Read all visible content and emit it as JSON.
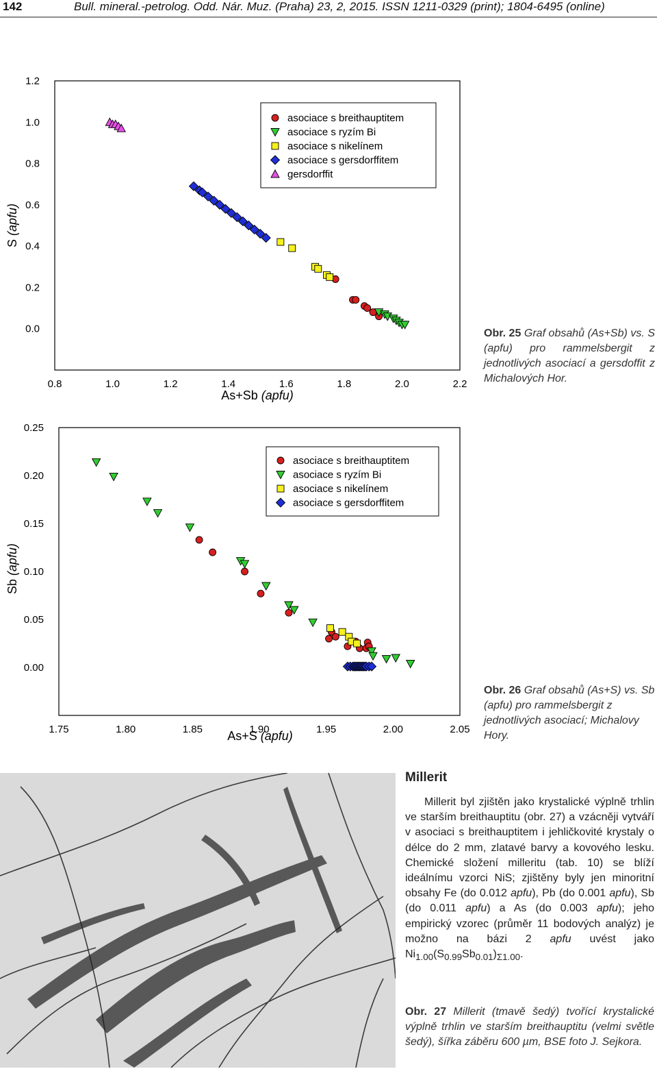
{
  "header": {
    "page_number": "142",
    "running_head": "Bull. mineral.-petrolog. Odd. Nár. Muz. (Praha) 23, 2, 2015. ISSN 1211-0329 (print); 1804-6495 (online)"
  },
  "colors": {
    "breithauptit": "#d81f1f",
    "ryzi_bi": "#33cc33",
    "nikelin": "#f6f11c",
    "gersdorffit_assoc": "#1f2fd8",
    "gersdorffit": "#e44fe4"
  },
  "chart_data": [
    {
      "type": "scatter",
      "xlabel_main": "As+Sb ",
      "xlabel_unit": "(apfu)",
      "ylabel_main": "S ",
      "ylabel_unit": "(apfu)",
      "xlim": [
        0.8,
        2.2
      ],
      "ylim": [
        -0.2,
        1.2
      ],
      "xticks": [
        "0.8",
        "1.0",
        "1.2",
        "1.4",
        "1.6",
        "1.8",
        "2.0",
        "2.2"
      ],
      "yticks": [
        "0.0",
        "0.2",
        "0.4",
        "0.6",
        "0.8",
        "1.0",
        "1.2"
      ],
      "legend_position": "top-right",
      "series": [
        {
          "name": "asociace s breithauptitem",
          "marker": "circle",
          "color": "#d81f1f",
          "x": [
            1.77,
            1.83,
            1.84,
            1.87,
            1.88,
            1.9,
            1.92
          ],
          "y": [
            0.24,
            0.14,
            0.14,
            0.11,
            0.1,
            0.08,
            0.06
          ]
        },
        {
          "name": "asociace s ryzím Bi",
          "marker": "triangle-down",
          "color": "#33cc33",
          "x": [
            1.92,
            1.94,
            1.95,
            1.97,
            1.98,
            1.99,
            2.0,
            2.01
          ],
          "y": [
            0.08,
            0.07,
            0.06,
            0.05,
            0.04,
            0.03,
            0.02,
            0.02
          ]
        },
        {
          "name": "asociace s nikelínem",
          "marker": "square",
          "color": "#f6f11c",
          "x": [
            1.58,
            1.62,
            1.7,
            1.71,
            1.74,
            1.75
          ],
          "y": [
            0.42,
            0.39,
            0.3,
            0.29,
            0.26,
            0.25
          ]
        },
        {
          "name": "asociace s gersdorffitem",
          "marker": "diamond",
          "color": "#1f2fd8",
          "x": [
            1.28,
            1.3,
            1.31,
            1.33,
            1.35,
            1.37,
            1.39,
            1.41,
            1.43,
            1.45,
            1.47,
            1.49,
            1.51,
            1.53
          ],
          "y": [
            0.69,
            0.67,
            0.66,
            0.64,
            0.62,
            0.6,
            0.58,
            0.56,
            0.54,
            0.52,
            0.5,
            0.48,
            0.46,
            0.44
          ]
        },
        {
          "name": "gersdorffit",
          "marker": "triangle-up",
          "color": "#e44fe4",
          "x": [
            0.99,
            1.0,
            1.01,
            1.02,
            1.03
          ],
          "y": [
            1.0,
            0.99,
            0.99,
            0.98,
            0.97
          ]
        }
      ]
    },
    {
      "type": "scatter",
      "xlabel_main": "As+S ",
      "xlabel_unit": "(apfu)",
      "ylabel_main": "Sb ",
      "ylabel_unit": "(apfu)",
      "xlim": [
        1.75,
        2.05
      ],
      "ylim": [
        -0.05,
        0.25
      ],
      "xticks": [
        "1.75",
        "1.80",
        "1.85",
        "1.90",
        "1.95",
        "2.00",
        "2.05"
      ],
      "yticks": [
        "0.00",
        "0.05",
        "0.10",
        "0.15",
        "0.20",
        "0.25"
      ],
      "legend_position": "top-right",
      "series": [
        {
          "name": "asociace s breithauptitem",
          "marker": "circle",
          "color": "#d81f1f",
          "x": [
            1.855,
            1.865,
            1.889,
            1.901,
            1.922,
            1.952,
            1.954,
            1.957,
            1.966,
            1.972,
            1.975,
            1.98,
            1.981,
            1.982
          ],
          "y": [
            0.133,
            0.12,
            0.1,
            0.077,
            0.057,
            0.03,
            0.037,
            0.032,
            0.022,
            0.027,
            0.02,
            0.02,
            0.026,
            0.022
          ]
        },
        {
          "name": "asociace s ryzím Bi",
          "marker": "triangle-down",
          "color": "#33cc33",
          "x": [
            1.778,
            1.791,
            1.816,
            1.824,
            1.848,
            1.886,
            1.889,
            1.905,
            1.922,
            1.926,
            1.94,
            1.984,
            1.985,
            1.995,
            2.002,
            2.013
          ],
          "y": [
            0.214,
            0.199,
            0.173,
            0.161,
            0.146,
            0.111,
            0.108,
            0.085,
            0.065,
            0.06,
            0.047,
            0.017,
            0.012,
            0.009,
            0.01,
            0.004
          ]
        },
        {
          "name": "asociace s nikelínem",
          "marker": "square",
          "color": "#f6f11c",
          "x": [
            1.953,
            1.962,
            1.967,
            1.969,
            1.973
          ],
          "y": [
            0.041,
            0.037,
            0.032,
            0.027,
            0.025
          ]
        },
        {
          "name": "asociace s gersdorffitem",
          "marker": "diamond",
          "color": "#1f2fd8",
          "x": [
            1.966,
            1.968,
            1.97,
            1.971,
            1.972,
            1.973,
            1.974,
            1.975,
            1.976,
            1.977,
            1.978,
            1.979,
            1.98,
            1.982,
            1.984
          ],
          "y": [
            0.001,
            0.001,
            0.001,
            0.001,
            0.001,
            0.001,
            0.001,
            0.001,
            0.001,
            0.001,
            0.001,
            0.001,
            0.001,
            0.001,
            0.001
          ]
        }
      ]
    }
  ],
  "captions": {
    "fig25_lead": "Obr. 25",
    "fig25_body": "Graf obsahů (As+Sb) vs. S (apfu) pro rammelsbergit z jednotlivých asociací a gersdoffit z Michalových Hor.",
    "fig26_lead": "Obr. 26",
    "fig26_body": "Graf obsahů (As+S) vs. Sb (apfu) pro rammelsbergit z jednotlivých asociací; Michalovy Hory.",
    "fig27_lead": "Obr. 27",
    "fig27_body": "Millerit (tmavě šedý) tvořící krystalické výplně trhlin ve starším breithauptitu (velmi světle šedý), šířka záběru 600 µm, BSE foto J. Sejkora."
  },
  "section": {
    "title": "Millerit",
    "text_1": "Millerit byl zjištěn jako krystalické výplně trhlin ve starším breithauptitu (obr. 27) a vzácněji vytváří v asociaci s breithauptitem i jehličkovité krystaly o délce do 2 mm, zlatavé barvy a kovového lesku. Chemické složení milleritu (tab. 10) se blíží ideálnímu vzorci NiS; zjištěny byly jen minoritní obsahy Fe (do 0.012 ",
    "apfu": "apfu",
    "text_2": "), Pb (do 0.001 ",
    "text_3": "), Sb (do 0.011 ",
    "text_4": ") a As (do 0.003 ",
    "text_5": "); jeho empirický vzorec (průměr 11 bodových analýz) je možno na bázi 2 ",
    "text_6": " uvést jako Ni",
    "sub_ni": "1.00",
    "open_s": "(S",
    "sub_s": "0.99",
    "sb": "Sb",
    "sub_sb": "0.01",
    "close": ")",
    "sub_sum": "Σ1.00",
    "end": "."
  }
}
